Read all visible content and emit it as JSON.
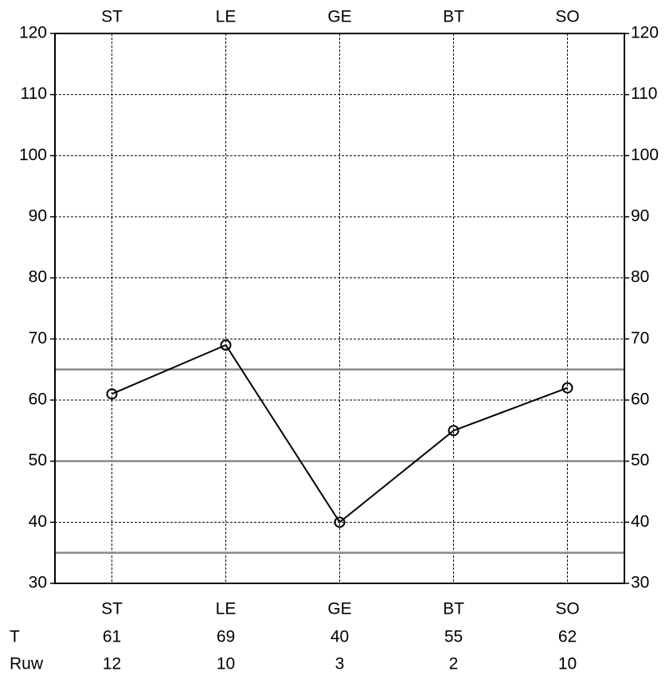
{
  "chart_data": {
    "type": "line",
    "categories": [
      "ST",
      "LE",
      "GE",
      "BT",
      "SO"
    ],
    "series": [
      {
        "name": "T",
        "color": "#000000",
        "values": [
          61,
          69,
          40,
          55,
          62
        ]
      }
    ],
    "raw_scores": {
      "name": "Ruw",
      "values": [
        12,
        10,
        3,
        2,
        10
      ]
    },
    "ylim": [
      30,
      120
    ],
    "yticks": [
      30,
      40,
      50,
      60,
      70,
      80,
      90,
      100,
      110,
      120
    ],
    "grid": true,
    "reference_lines": [
      65,
      50,
      35
    ],
    "reference_color": "#888888"
  }
}
